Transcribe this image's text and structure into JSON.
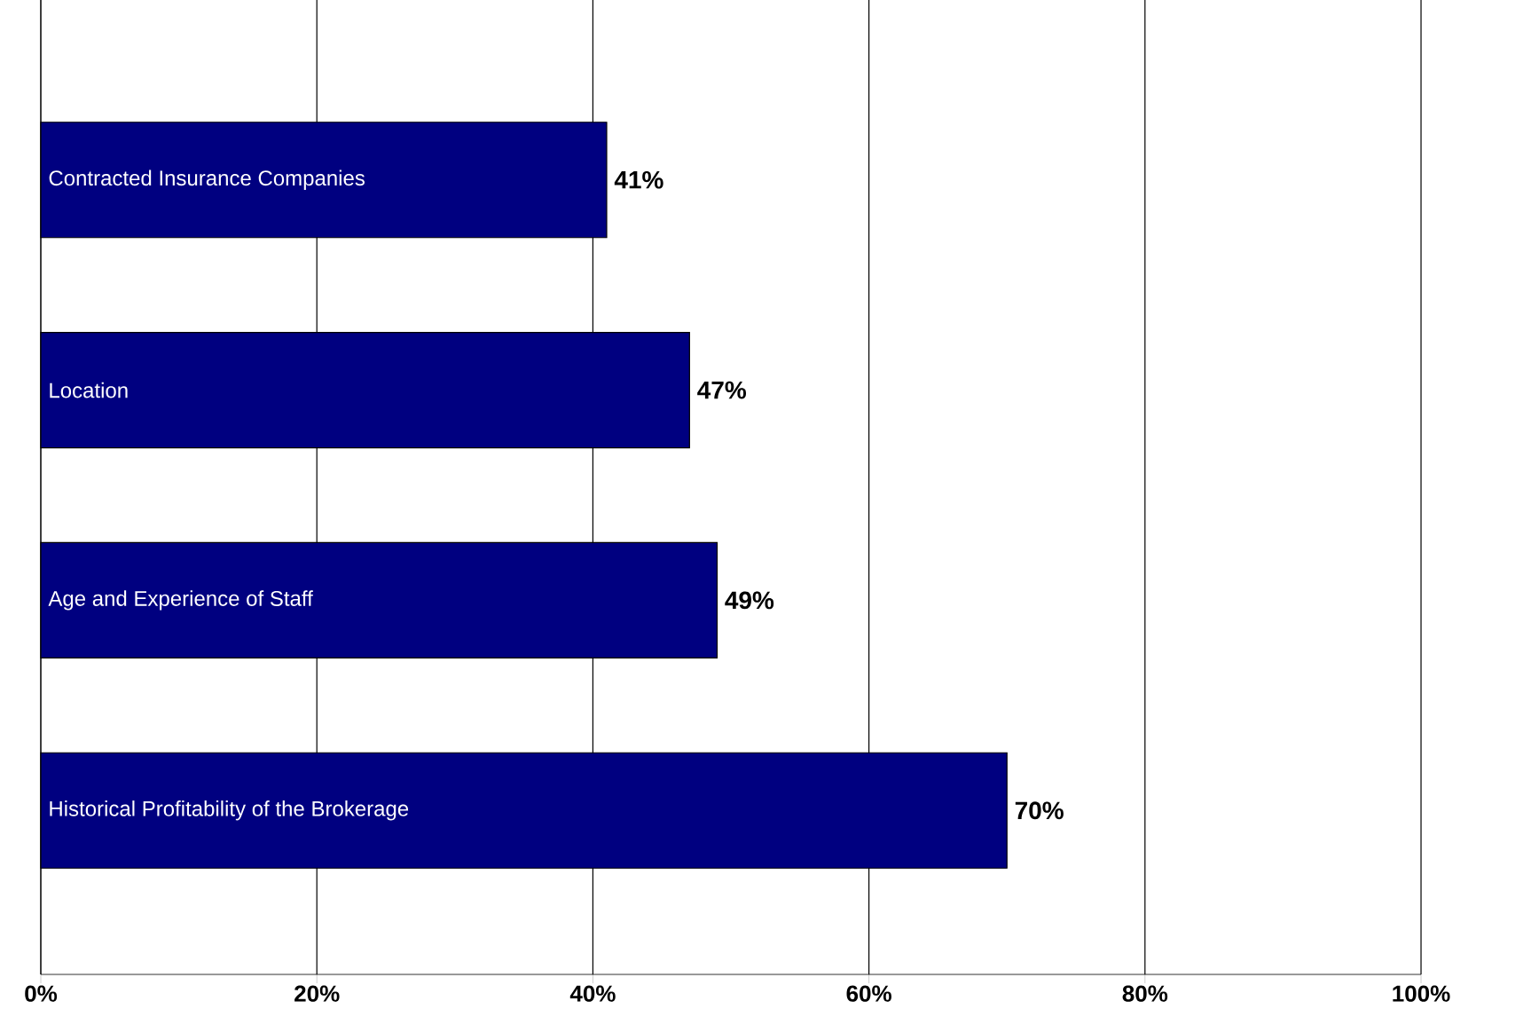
{
  "chart_data": {
    "type": "bar",
    "orientation": "horizontal",
    "categories": [
      "Contracted Insurance Companies",
      "Location",
      "Age and Experience of Staff",
      "Historical Profitability of the Brokerage"
    ],
    "values": [
      41,
      47,
      49,
      70
    ],
    "value_labels": [
      "41%",
      "47%",
      "49%",
      "70%"
    ],
    "color": "#000080",
    "xlim": [
      0,
      100
    ],
    "xticks": [
      {
        "value": 0,
        "label": "0%"
      },
      {
        "value": 20,
        "label": "20%"
      },
      {
        "value": 40,
        "label": "40%"
      },
      {
        "value": 60,
        "label": "60%"
      },
      {
        "value": 80,
        "label": "80%"
      },
      {
        "value": 100,
        "label": "100%"
      }
    ],
    "grid": "x"
  }
}
